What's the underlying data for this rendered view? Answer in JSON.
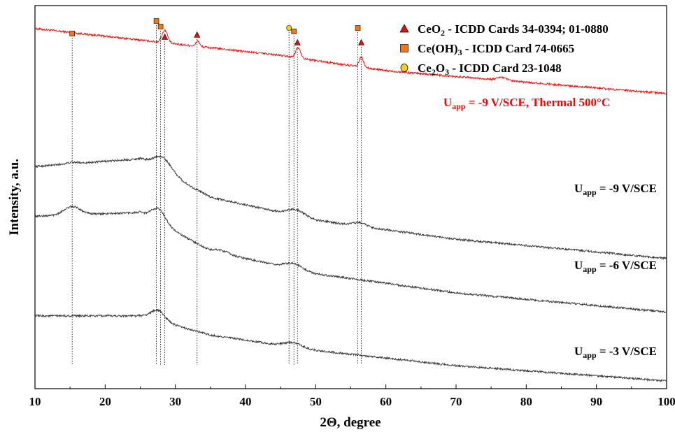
{
  "chart_data": {
    "type": "line",
    "xlabel": "2Θ, degree",
    "ylabel": "Intensity, a.u.",
    "xlim": [
      10,
      100
    ],
    "x_ticks": [
      10,
      20,
      30,
      40,
      50,
      60,
      70,
      80,
      90,
      100
    ],
    "y_ticks_shown": false,
    "grid": false,
    "legend_position": "top-right",
    "legend": [
      {
        "marker": "triangle",
        "color": "#e01010",
        "formula": "CeO",
        "sub": "2",
        "text": " - ICDD Cards 34-0394; 01-0880"
      },
      {
        "marker": "square",
        "color": "#f07818",
        "formula": "Ce(OH)",
        "sub": "3",
        "text": " - ICDD Card 74-0665"
      },
      {
        "marker": "circle",
        "color": "#f0d020",
        "formula": "Ce",
        "sub": "2",
        "formula2": "O",
        "sub2": "3",
        "text": " - ICDD Card 23-1048"
      }
    ],
    "reference_peaks": {
      "CeO2": [
        28.5,
        33.1,
        47.4,
        56.5
      ],
      "Ce(OH)3": [
        15.3,
        27.3,
        27.9,
        46.9,
        56.0
      ],
      "Ce2O3": [
        46.2
      ]
    },
    "series": [
      {
        "label_main": "U",
        "label_sub": "app",
        "label_rest": " = -9 V/SCE, Thermal 500°C",
        "color": "#ff0000",
        "base": [
          [
            10,
            0.94
          ],
          [
            30,
            0.9
          ],
          [
            45,
            0.87
          ],
          [
            60,
            0.83
          ],
          [
            80,
            0.8
          ],
          [
            100,
            0.77
          ]
        ],
        "peaks": [
          [
            28.5,
            0.5,
            0.4
          ],
          [
            33.2,
            0.22,
            0.25
          ],
          [
            47.5,
            0.42,
            0.35
          ],
          [
            56.5,
            0.4,
            0.3
          ],
          [
            76.5,
            0.12,
            0.6
          ]
        ],
        "noise": 0.09
      },
      {
        "label_main": "U",
        "label_sub": "app",
        "label_rest": " = -9 V/SCE",
        "color": "#333333",
        "base": [
          [
            10,
            0.58
          ],
          [
            25,
            0.6
          ],
          [
            35,
            0.5
          ],
          [
            50,
            0.44
          ],
          [
            70,
            0.39
          ],
          [
            100,
            0.34
          ]
        ],
        "peaks": [
          [
            15.3,
            0.05,
            1.0
          ],
          [
            28.2,
            0.55,
            1.3
          ],
          [
            47.2,
            0.25,
            1.2
          ],
          [
            56.2,
            0.14,
            0.9
          ]
        ],
        "noise": 0.09
      },
      {
        "label_main": "U",
        "label_sub": "app",
        "label_rest": " = -6 V/SCE",
        "color": "#333333",
        "base": [
          [
            10,
            0.45
          ],
          [
            25,
            0.46
          ],
          [
            35,
            0.36
          ],
          [
            50,
            0.3
          ],
          [
            70,
            0.25
          ],
          [
            100,
            0.2
          ]
        ],
        "peaks": [
          [
            15.3,
            0.33,
            1.2
          ],
          [
            27.6,
            0.55,
            1.0
          ],
          [
            36.5,
            0.12,
            1.0
          ],
          [
            46.8,
            0.22,
            1.2
          ]
        ],
        "noise": 0.09
      },
      {
        "label_main": "U",
        "label_sub": "app",
        "label_rest": " = -3 V/SCE",
        "color": "#333333",
        "base": [
          [
            10,
            0.19
          ],
          [
            25,
            0.19
          ],
          [
            35,
            0.14
          ],
          [
            50,
            0.1
          ],
          [
            70,
            0.06
          ],
          [
            100,
            0.02
          ]
        ],
        "peaks": [
          [
            27.5,
            0.42,
            1.0
          ],
          [
            46.7,
            0.18,
            1.2
          ]
        ],
        "noise": 0.09
      }
    ]
  }
}
